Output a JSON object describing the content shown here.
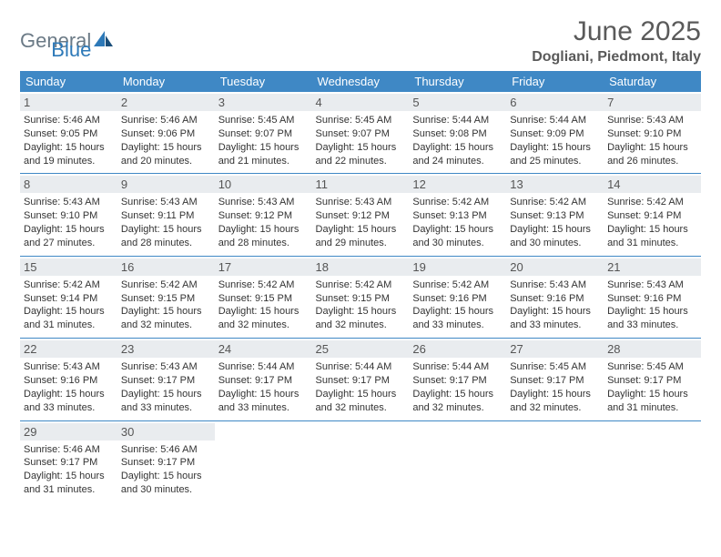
{
  "logo": {
    "word1": "General",
    "word2": "Blue"
  },
  "title": "June 2025",
  "location": "Dogliani, Piedmont, Italy",
  "colors": {
    "header_bg": "#3f88c5",
    "header_text": "#ffffff",
    "daynum_bg": "#e9ecef",
    "text": "#333333",
    "title_text": "#5a5a5a",
    "logo_gray": "#6b7a86",
    "logo_blue": "#2d79b8"
  },
  "weekdays": [
    "Sunday",
    "Monday",
    "Tuesday",
    "Wednesday",
    "Thursday",
    "Friday",
    "Saturday"
  ],
  "weeks": [
    [
      {
        "n": "1",
        "sr": "Sunrise: 5:46 AM",
        "ss": "Sunset: 9:05 PM",
        "d1": "Daylight: 15 hours",
        "d2": "and 19 minutes."
      },
      {
        "n": "2",
        "sr": "Sunrise: 5:46 AM",
        "ss": "Sunset: 9:06 PM",
        "d1": "Daylight: 15 hours",
        "d2": "and 20 minutes."
      },
      {
        "n": "3",
        "sr": "Sunrise: 5:45 AM",
        "ss": "Sunset: 9:07 PM",
        "d1": "Daylight: 15 hours",
        "d2": "and 21 minutes."
      },
      {
        "n": "4",
        "sr": "Sunrise: 5:45 AM",
        "ss": "Sunset: 9:07 PM",
        "d1": "Daylight: 15 hours",
        "d2": "and 22 minutes."
      },
      {
        "n": "5",
        "sr": "Sunrise: 5:44 AM",
        "ss": "Sunset: 9:08 PM",
        "d1": "Daylight: 15 hours",
        "d2": "and 24 minutes."
      },
      {
        "n": "6",
        "sr": "Sunrise: 5:44 AM",
        "ss": "Sunset: 9:09 PM",
        "d1": "Daylight: 15 hours",
        "d2": "and 25 minutes."
      },
      {
        "n": "7",
        "sr": "Sunrise: 5:43 AM",
        "ss": "Sunset: 9:10 PM",
        "d1": "Daylight: 15 hours",
        "d2": "and 26 minutes."
      }
    ],
    [
      {
        "n": "8",
        "sr": "Sunrise: 5:43 AM",
        "ss": "Sunset: 9:10 PM",
        "d1": "Daylight: 15 hours",
        "d2": "and 27 minutes."
      },
      {
        "n": "9",
        "sr": "Sunrise: 5:43 AM",
        "ss": "Sunset: 9:11 PM",
        "d1": "Daylight: 15 hours",
        "d2": "and 28 minutes."
      },
      {
        "n": "10",
        "sr": "Sunrise: 5:43 AM",
        "ss": "Sunset: 9:12 PM",
        "d1": "Daylight: 15 hours",
        "d2": "and 28 minutes."
      },
      {
        "n": "11",
        "sr": "Sunrise: 5:43 AM",
        "ss": "Sunset: 9:12 PM",
        "d1": "Daylight: 15 hours",
        "d2": "and 29 minutes."
      },
      {
        "n": "12",
        "sr": "Sunrise: 5:42 AM",
        "ss": "Sunset: 9:13 PM",
        "d1": "Daylight: 15 hours",
        "d2": "and 30 minutes."
      },
      {
        "n": "13",
        "sr": "Sunrise: 5:42 AM",
        "ss": "Sunset: 9:13 PM",
        "d1": "Daylight: 15 hours",
        "d2": "and 30 minutes."
      },
      {
        "n": "14",
        "sr": "Sunrise: 5:42 AM",
        "ss": "Sunset: 9:14 PM",
        "d1": "Daylight: 15 hours",
        "d2": "and 31 minutes."
      }
    ],
    [
      {
        "n": "15",
        "sr": "Sunrise: 5:42 AM",
        "ss": "Sunset: 9:14 PM",
        "d1": "Daylight: 15 hours",
        "d2": "and 31 minutes."
      },
      {
        "n": "16",
        "sr": "Sunrise: 5:42 AM",
        "ss": "Sunset: 9:15 PM",
        "d1": "Daylight: 15 hours",
        "d2": "and 32 minutes."
      },
      {
        "n": "17",
        "sr": "Sunrise: 5:42 AM",
        "ss": "Sunset: 9:15 PM",
        "d1": "Daylight: 15 hours",
        "d2": "and 32 minutes."
      },
      {
        "n": "18",
        "sr": "Sunrise: 5:42 AM",
        "ss": "Sunset: 9:15 PM",
        "d1": "Daylight: 15 hours",
        "d2": "and 32 minutes."
      },
      {
        "n": "19",
        "sr": "Sunrise: 5:42 AM",
        "ss": "Sunset: 9:16 PM",
        "d1": "Daylight: 15 hours",
        "d2": "and 33 minutes."
      },
      {
        "n": "20",
        "sr": "Sunrise: 5:43 AM",
        "ss": "Sunset: 9:16 PM",
        "d1": "Daylight: 15 hours",
        "d2": "and 33 minutes."
      },
      {
        "n": "21",
        "sr": "Sunrise: 5:43 AM",
        "ss": "Sunset: 9:16 PM",
        "d1": "Daylight: 15 hours",
        "d2": "and 33 minutes."
      }
    ],
    [
      {
        "n": "22",
        "sr": "Sunrise: 5:43 AM",
        "ss": "Sunset: 9:16 PM",
        "d1": "Daylight: 15 hours",
        "d2": "and 33 minutes."
      },
      {
        "n": "23",
        "sr": "Sunrise: 5:43 AM",
        "ss": "Sunset: 9:17 PM",
        "d1": "Daylight: 15 hours",
        "d2": "and 33 minutes."
      },
      {
        "n": "24",
        "sr": "Sunrise: 5:44 AM",
        "ss": "Sunset: 9:17 PM",
        "d1": "Daylight: 15 hours",
        "d2": "and 33 minutes."
      },
      {
        "n": "25",
        "sr": "Sunrise: 5:44 AM",
        "ss": "Sunset: 9:17 PM",
        "d1": "Daylight: 15 hours",
        "d2": "and 32 minutes."
      },
      {
        "n": "26",
        "sr": "Sunrise: 5:44 AM",
        "ss": "Sunset: 9:17 PM",
        "d1": "Daylight: 15 hours",
        "d2": "and 32 minutes."
      },
      {
        "n": "27",
        "sr": "Sunrise: 5:45 AM",
        "ss": "Sunset: 9:17 PM",
        "d1": "Daylight: 15 hours",
        "d2": "and 32 minutes."
      },
      {
        "n": "28",
        "sr": "Sunrise: 5:45 AM",
        "ss": "Sunset: 9:17 PM",
        "d1": "Daylight: 15 hours",
        "d2": "and 31 minutes."
      }
    ],
    [
      {
        "n": "29",
        "sr": "Sunrise: 5:46 AM",
        "ss": "Sunset: 9:17 PM",
        "d1": "Daylight: 15 hours",
        "d2": "and 31 minutes."
      },
      {
        "n": "30",
        "sr": "Sunrise: 5:46 AM",
        "ss": "Sunset: 9:17 PM",
        "d1": "Daylight: 15 hours",
        "d2": "and 30 minutes."
      },
      null,
      null,
      null,
      null,
      null
    ]
  ]
}
